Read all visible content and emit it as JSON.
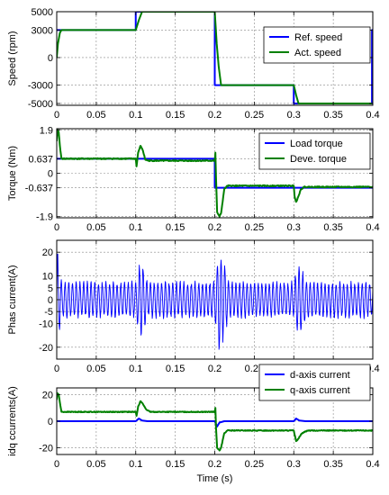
{
  "chart_data": [
    {
      "type": "line",
      "ylabel": "Speed  (rpm)",
      "xlabel": "",
      "xlim": [
        0,
        0.4
      ],
      "ylim": [
        -5200,
        5000
      ],
      "xticks": [
        0,
        0.05,
        0.1,
        0.15,
        0.2,
        0.25,
        0.3,
        0.35,
        0.4
      ],
      "xtick_labels": [
        "0",
        "0.05",
        "0.1",
        "0.15",
        "0.2",
        "0.25",
        "0.3",
        "0.35",
        "0.4"
      ],
      "yticks": [
        5000,
        3000,
        0,
        -3000,
        -5000
      ],
      "ytick_labels": [
        "5000",
        "3000",
        "0",
        "-3000",
        "-5000"
      ],
      "grid": true,
      "legend_position": "top-right",
      "series": [
        {
          "name": "Ref. speed",
          "color": "#0000ff",
          "x": [
            0,
            0.1,
            0.1,
            0.2,
            0.2,
            0.3,
            0.3,
            0.399,
            0.399,
            0.4
          ],
          "y": [
            3000,
            3000,
            5000,
            5000,
            -3000,
            -3000,
            -5000,
            -5000,
            3000,
            3000
          ]
        },
        {
          "name": "Act. speed",
          "color": "#008000",
          "x": [
            0,
            0.0015,
            0.004,
            0.006,
            0.1,
            0.104,
            0.108,
            0.2,
            0.2025,
            0.205,
            0.208,
            0.3,
            0.303,
            0.306,
            0.399
          ],
          "y": [
            0,
            1500,
            2700,
            3000,
            3000,
            4100,
            5000,
            5000,
            1500,
            -1000,
            -3000,
            -3000,
            -4100,
            -5000,
            -5000
          ]
        }
      ]
    },
    {
      "type": "line",
      "ylabel": "Torque (Nm)",
      "xlabel": "",
      "xlim": [
        0,
        0.4
      ],
      "ylim": [
        -1.95,
        1.95
      ],
      "xticks": [
        0,
        0.05,
        0.1,
        0.15,
        0.2,
        0.25,
        0.3,
        0.35,
        0.4
      ],
      "xtick_labels": [
        "0",
        "0.05",
        "0.1",
        "0.15",
        "0.2",
        "0.25",
        "0.3",
        "0.35",
        "0.4"
      ],
      "yticks": [
        1.9,
        0.637,
        0,
        -0.637,
        -1.9
      ],
      "ytick_labels": [
        "1.9",
        "0.637",
        "0",
        "-0.637",
        "-1.9"
      ],
      "grid": true,
      "legend_position": "top-right",
      "series": [
        {
          "name": "Load torque",
          "color": "#0000ff",
          "x": [
            0,
            0.2,
            0.2,
            0.4
          ],
          "y": [
            0.637,
            0.637,
            -0.637,
            -0.637
          ]
        },
        {
          "name": "Deve. torque",
          "color": "#008000",
          "x": [
            0,
            0.001,
            0.0025,
            0.004,
            0.006,
            0.1,
            0.101,
            0.103,
            0.106,
            0.109,
            0.112,
            0.116,
            0.2,
            0.2008,
            0.2016,
            0.203,
            0.206,
            0.208,
            0.212,
            0.216,
            0.3,
            0.301,
            0.303,
            0.306,
            0.309,
            0.313,
            0.318,
            0.4
          ],
          "y": [
            1.4,
            1.9,
            1.8,
            1.2,
            0.637,
            0.637,
            0.3,
            0.9,
            1.2,
            1.0,
            0.6,
            0.55,
            0.55,
            0.9,
            -0.2,
            -1.7,
            -1.9,
            -1.75,
            -0.7,
            -0.55,
            -0.55,
            -1.0,
            -1.25,
            -1.0,
            -0.7,
            -0.6,
            -0.6,
            -0.6
          ]
        }
      ]
    },
    {
      "type": "line",
      "ylabel": "Phas current(A)",
      "xlabel": "",
      "xlim": [
        0,
        0.4
      ],
      "ylim": [
        -25,
        25
      ],
      "xticks": [
        0,
        0.05,
        0.1,
        0.15,
        0.2,
        0.25,
        0.3,
        0.35,
        0.4
      ],
      "xtick_labels": [
        "0",
        "0.05",
        "0.1",
        "0.15",
        "0.2",
        "0.25",
        "0.3",
        "0.35",
        "0.4"
      ],
      "yticks": [
        20,
        10,
        5,
        0,
        -5,
        -10,
        -20
      ],
      "ytick_labels": [
        "20",
        "10",
        "5",
        "0",
        "-5",
        "-10",
        "-20"
      ],
      "grid": true,
      "series": [
        {
          "name": "",
          "color": "#0000ff",
          "envelope": [
            [
              0,
              21
            ],
            [
              0.006,
              7
            ],
            [
              0.1,
              7
            ],
            [
              0.106,
              16
            ],
            [
              0.116,
              7
            ],
            [
              0.2,
              7
            ],
            [
              0.206,
              22
            ],
            [
              0.218,
              7
            ],
            [
              0.3,
              7
            ],
            [
              0.306,
              16
            ],
            [
              0.316,
              7
            ],
            [
              0.4,
              7
            ]
          ]
        }
      ]
    },
    {
      "type": "line",
      "ylabel": "idq ccurrents(A)",
      "xlabel": "Time (s)",
      "xlim": [
        0,
        0.4
      ],
      "ylim": [
        -25,
        25
      ],
      "xticks": [
        0,
        0.05,
        0.1,
        0.15,
        0.2,
        0.25,
        0.3,
        0.35,
        0.4
      ],
      "xtick_labels": [
        "0",
        "0.05",
        "0.1",
        "0.15",
        "0.2",
        "0.25",
        "0.3",
        "0.35",
        "0.4"
      ],
      "yticks": [
        20,
        0,
        -20
      ],
      "ytick_labels": [
        "20",
        "0",
        "-20"
      ],
      "grid": true,
      "legend_position": "top-right",
      "series": [
        {
          "name": "d-axis current",
          "color": "#0000ff",
          "x": [
            0,
            0.1,
            0.104,
            0.108,
            0.115,
            0.2,
            0.203,
            0.206,
            0.212,
            0.3,
            0.303,
            0.307,
            0.315,
            0.4
          ],
          "y": [
            0,
            0,
            2,
            0.5,
            0,
            0,
            -4,
            -1,
            0,
            0,
            2,
            0.5,
            0,
            0
          ]
        },
        {
          "name": "q-axis current",
          "color": "#008000",
          "x": [
            0,
            0.0008,
            0.0025,
            0.004,
            0.006,
            0.1,
            0.101,
            0.103,
            0.106,
            0.109,
            0.113,
            0.118,
            0.2,
            0.2008,
            0.2016,
            0.203,
            0.206,
            0.208,
            0.212,
            0.216,
            0.3,
            0.301,
            0.303,
            0.306,
            0.309,
            0.313,
            0.318,
            0.4
          ],
          "y": [
            16,
            21,
            20,
            14,
            7,
            7,
            4,
            11,
            15,
            13,
            9,
            7,
            7,
            10,
            -5,
            -20,
            -22,
            -20,
            -9,
            -7,
            -7,
            -10,
            -15,
            -13,
            -10,
            -8,
            -7,
            -7
          ]
        }
      ]
    }
  ]
}
